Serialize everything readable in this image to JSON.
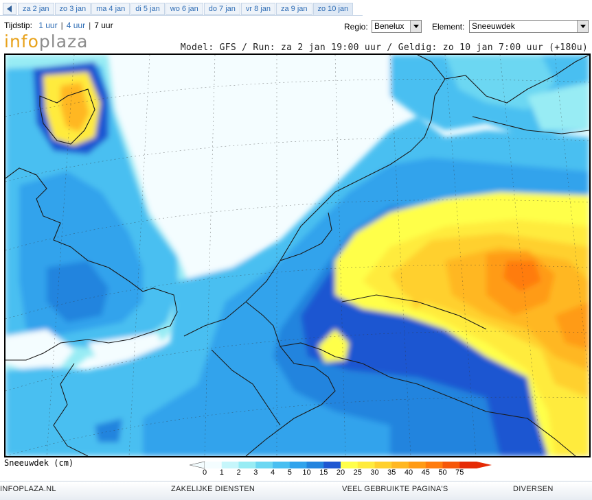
{
  "tabs": [
    "za 2 jan",
    "zo 3 jan",
    "ma 4 jan",
    "di 5 jan",
    "wo 6 jan",
    "do 7 jan",
    "vr 8 jan",
    "za 9 jan",
    "zo 10 jan"
  ],
  "active_tab_index": 8,
  "tijdstip": {
    "label": "Tijdstip:",
    "options": [
      "1 uur",
      "4 uur",
      "7 uur"
    ],
    "selected": "7 uur"
  },
  "regio": {
    "label": "Regio:",
    "value": "Benelux"
  },
  "element": {
    "label": "Element:",
    "value": "Sneeuwdek"
  },
  "logo": {
    "part1": "info",
    "part2": "plaza"
  },
  "model_line": "Model: GFS / Run: za 2 jan 19:00 uur / Geldig: zo 10 jan 7:00 uur (+180u)",
  "legend": {
    "title": "Sneeuwdek (cm)",
    "values": [
      "0",
      "1",
      "2",
      "3",
      "4",
      "5",
      "10",
      "15",
      "20",
      "25",
      "30",
      "35",
      "40",
      "45",
      "50",
      "75"
    ],
    "colors": [
      "#f4fdff",
      "#c6f6fb",
      "#98ecf4",
      "#6cd7f2",
      "#49bff1",
      "#31a3ec",
      "#2484de",
      "#1f57d1",
      "#ffff4a",
      "#ffeb3d",
      "#ffd02e",
      "#ffb721",
      "#ff9b16",
      "#ff7c0e",
      "#f65709",
      "#e52a05"
    ]
  },
  "footer": {
    "links": [
      "INFOPLAZA.NL",
      "ZAKELIJKE DIENSTEN",
      "VEEL GEBRUIKTE PAGINA'S",
      "DIVERSEN"
    ]
  }
}
